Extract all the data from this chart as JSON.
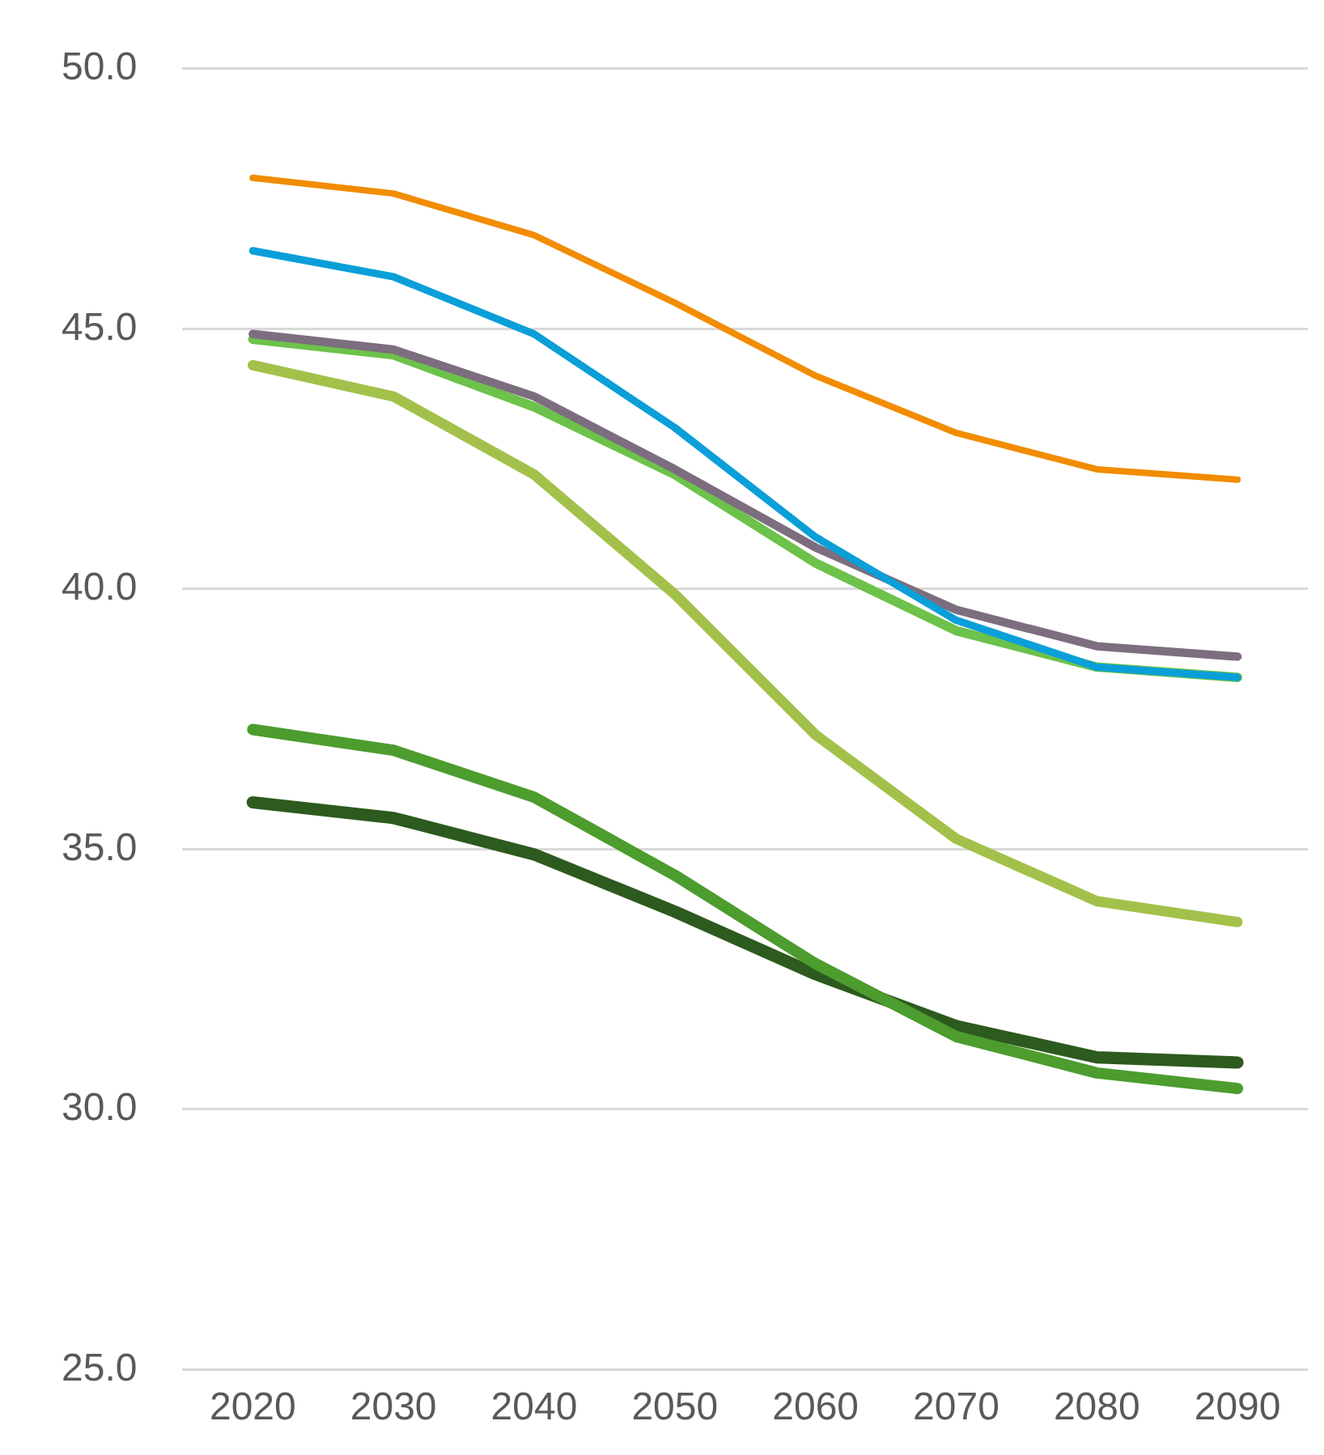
{
  "chart_data": {
    "type": "line",
    "categories": [
      "2020",
      "2030",
      "2040",
      "2050",
      "2060",
      "2070",
      "2080",
      "2090"
    ],
    "series": [
      {
        "color": "#f28c00",
        "values": [
          47.9,
          47.6,
          46.8,
          45.5,
          44.1,
          43.0,
          42.3,
          42.1
        ]
      },
      {
        "color": "#0a9fd8",
        "values": [
          46.5,
          46.0,
          44.9,
          43.1,
          41.0,
          39.4,
          38.5,
          38.3
        ]
      },
      {
        "color": "#7c6e7f",
        "values": [
          44.9,
          44.6,
          43.7,
          42.3,
          40.8,
          39.6,
          38.9,
          38.7
        ]
      },
      {
        "color": "#6cc24a",
        "values": [
          44.8,
          44.5,
          43.5,
          42.2,
          40.5,
          39.2,
          38.5,
          38.3
        ]
      },
      {
        "color": "#a3c14a",
        "values": [
          44.3,
          43.7,
          42.2,
          39.9,
          37.2,
          35.2,
          34.0,
          33.6
        ]
      },
      {
        "color": "#4c9c2e",
        "values": [
          37.3,
          36.9,
          36.0,
          34.5,
          32.8,
          31.4,
          30.7,
          30.4
        ]
      },
      {
        "color": "#2d5a1e",
        "values": [
          35.9,
          35.6,
          34.9,
          33.8,
          32.6,
          31.6,
          31.0,
          30.9
        ]
      }
    ],
    "ylim": [
      25,
      50
    ],
    "yticks": [
      {
        "value": 25,
        "label": "25.0"
      },
      {
        "value": 30,
        "label": "30.0"
      },
      {
        "value": 35,
        "label": "35.0"
      },
      {
        "value": 40,
        "label": "40.0"
      },
      {
        "value": 45,
        "label": "45.0"
      },
      {
        "value": 50,
        "label": "50.0"
      }
    ],
    "grid": "y",
    "legend": false,
    "marker": "none",
    "line_style": "solid"
  }
}
